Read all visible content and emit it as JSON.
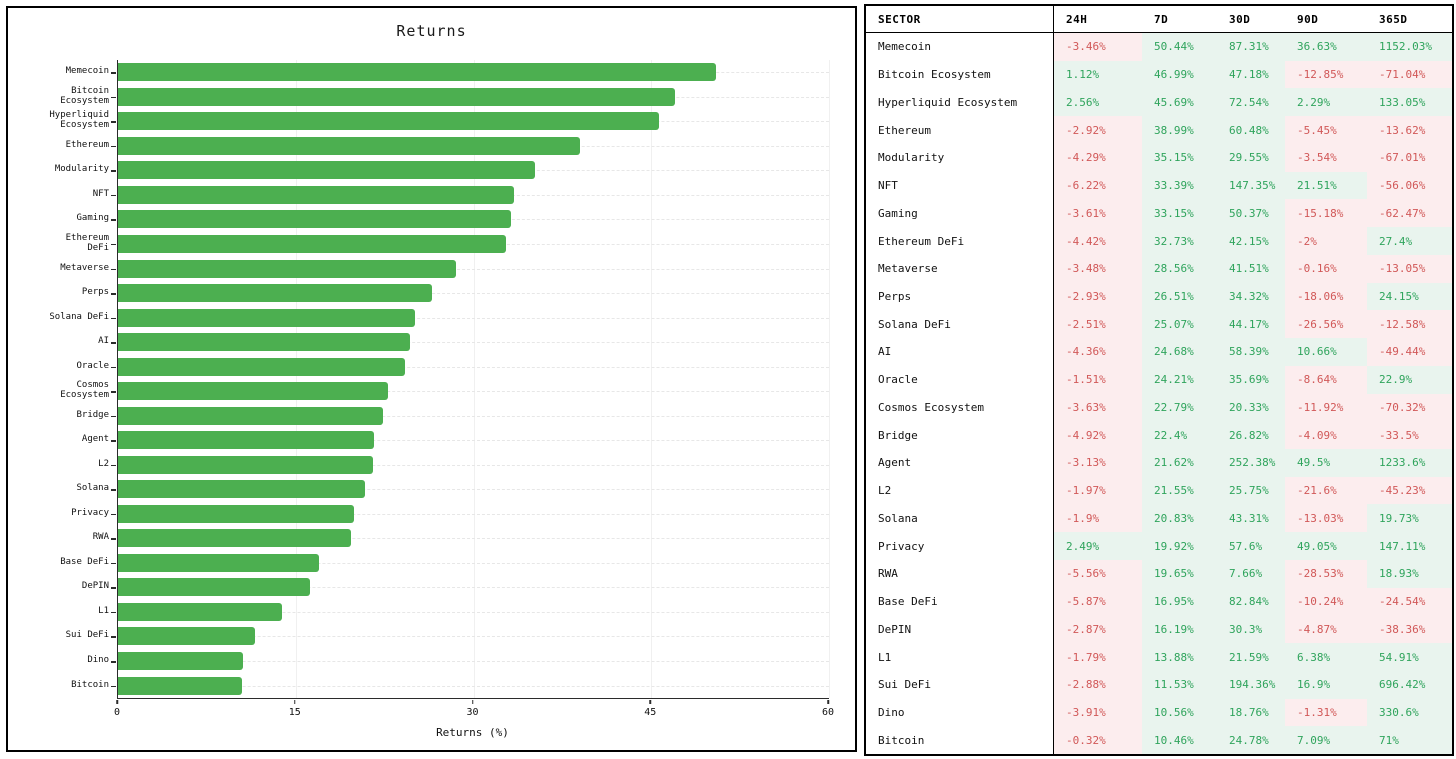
{
  "chart_data": [
    {
      "type": "bar",
      "orientation": "horizontal",
      "title": "Returns",
      "xlabel": "Returns (%)",
      "xlim": [
        0,
        60
      ],
      "x_ticks": [
        "0",
        "15",
        "30",
        "45",
        "60"
      ],
      "grid": true,
      "bar_color": "#4caf50",
      "categories": [
        "Memecoin",
        "Bitcoin Ecosystem",
        "Hyperliquid Ecosystem",
        "Ethereum",
        "Modularity",
        "NFT",
        "Gaming",
        "Ethereum DeFi",
        "Metaverse",
        "Perps",
        "Solana DeFi",
        "AI",
        "Oracle",
        "Cosmos Ecosystem",
        "Bridge",
        "Agent",
        "L2",
        "Solana",
        "Privacy",
        "RWA",
        "Base DeFi",
        "DePIN",
        "L1",
        "Sui DeFi",
        "Dino",
        "Bitcoin"
      ],
      "display_labels": [
        "Memecoin",
        "Bitcoin\nEcosystem",
        "Hyperliquid\nEcosystem",
        "Ethereum",
        "Modularity",
        "NFT",
        "Gaming",
        "Ethereum\nDeFi",
        "Metaverse",
        "Perps",
        "Solana DeFi",
        "AI",
        "Oracle",
        "Cosmos\nEcosystem",
        "Bridge",
        "Agent",
        "L2",
        "Solana",
        "Privacy",
        "RWA",
        "Base DeFi",
        "DePIN",
        "L1",
        "Sui DeFi",
        "Dino",
        "Bitcoin"
      ],
      "values": [
        50.44,
        46.99,
        45.69,
        38.99,
        35.15,
        33.39,
        33.15,
        32.73,
        28.56,
        26.51,
        25.07,
        24.68,
        24.21,
        22.79,
        22.4,
        21.62,
        21.55,
        20.83,
        19.92,
        19.65,
        16.95,
        16.19,
        13.88,
        11.53,
        10.56,
        10.46
      ]
    },
    {
      "type": "table",
      "columns": [
        "SECTOR",
        "24H",
        "7D",
        "30D",
        "90D",
        "365D"
      ],
      "rows": [
        [
          "Memecoin",
          "-3.46%",
          "50.44%",
          "87.31%",
          "36.63%",
          "1152.03%"
        ],
        [
          "Bitcoin Ecosystem",
          "1.12%",
          "46.99%",
          "47.18%",
          "-12.85%",
          "-71.04%"
        ],
        [
          "Hyperliquid Ecosystem",
          "2.56%",
          "45.69%",
          "72.54%",
          "2.29%",
          "133.05%"
        ],
        [
          "Ethereum",
          "-2.92%",
          "38.99%",
          "60.48%",
          "-5.45%",
          "-13.62%"
        ],
        [
          "Modularity",
          "-4.29%",
          "35.15%",
          "29.55%",
          "-3.54%",
          "-67.01%"
        ],
        [
          "NFT",
          "-6.22%",
          "33.39%",
          "147.35%",
          "21.51%",
          "-56.06%"
        ],
        [
          "Gaming",
          "-3.61%",
          "33.15%",
          "50.37%",
          "-15.18%",
          "-62.47%"
        ],
        [
          "Ethereum DeFi",
          "-4.42%",
          "32.73%",
          "42.15%",
          "-2%",
          "27.4%"
        ],
        [
          "Metaverse",
          "-3.48%",
          "28.56%",
          "41.51%",
          "-0.16%",
          "-13.05%"
        ],
        [
          "Perps",
          "-2.93%",
          "26.51%",
          "34.32%",
          "-18.06%",
          "24.15%"
        ],
        [
          "Solana DeFi",
          "-2.51%",
          "25.07%",
          "44.17%",
          "-26.56%",
          "-12.58%"
        ],
        [
          "AI",
          "-4.36%",
          "24.68%",
          "58.39%",
          "10.66%",
          "-49.44%"
        ],
        [
          "Oracle",
          "-1.51%",
          "24.21%",
          "35.69%",
          "-8.64%",
          "22.9%"
        ],
        [
          "Cosmos Ecosystem",
          "-3.63%",
          "22.79%",
          "20.33%",
          "-11.92%",
          "-70.32%"
        ],
        [
          "Bridge",
          "-4.92%",
          "22.4%",
          "26.82%",
          "-4.09%",
          "-33.5%"
        ],
        [
          "Agent",
          "-3.13%",
          "21.62%",
          "252.38%",
          "49.5%",
          "1233.6%"
        ],
        [
          "L2",
          "-1.97%",
          "21.55%",
          "25.75%",
          "-21.6%",
          "-45.23%"
        ],
        [
          "Solana",
          "-1.9%",
          "20.83%",
          "43.31%",
          "-13.03%",
          "19.73%"
        ],
        [
          "Privacy",
          "2.49%",
          "19.92%",
          "57.6%",
          "49.05%",
          "147.11%"
        ],
        [
          "RWA",
          "-5.56%",
          "19.65%",
          "7.66%",
          "-28.53%",
          "18.93%"
        ],
        [
          "Base DeFi",
          "-5.87%",
          "16.95%",
          "82.84%",
          "-10.24%",
          "-24.54%"
        ],
        [
          "DePIN",
          "-2.87%",
          "16.19%",
          "30.3%",
          "-4.87%",
          "-38.36%"
        ],
        [
          "L1",
          "-1.79%",
          "13.88%",
          "21.59%",
          "6.38%",
          "54.91%"
        ],
        [
          "Sui DeFi",
          "-2.88%",
          "11.53%",
          "194.36%",
          "16.9%",
          "696.42%"
        ],
        [
          "Dino",
          "-3.91%",
          "10.56%",
          "18.76%",
          "-1.31%",
          "330.6%"
        ],
        [
          "Bitcoin",
          "-0.32%",
          "10.46%",
          "24.78%",
          "7.09%",
          "71%"
        ]
      ],
      "positive_text_color": "#2fa45c",
      "negative_text_color": "#d15858",
      "positive_bg_color": "#e9f4ee",
      "negative_bg_color": "#fcedee"
    }
  ]
}
